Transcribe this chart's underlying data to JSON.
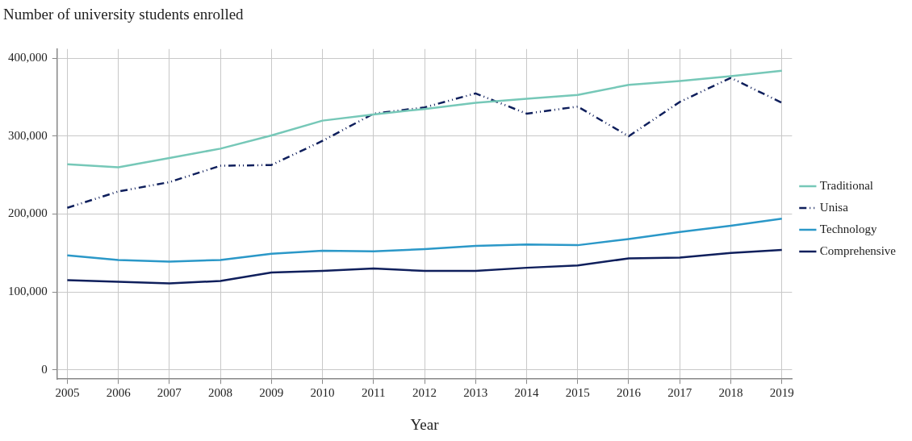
{
  "chart_data": {
    "type": "line",
    "title": "Number of university students enrolled",
    "xlabel": "Year",
    "x": [
      2005,
      2006,
      2007,
      2008,
      2009,
      2010,
      2011,
      2012,
      2013,
      2014,
      2015,
      2016,
      2017,
      2018,
      2019
    ],
    "xlim": [
      2004.8,
      2019.2
    ],
    "xticks": [
      2005,
      2006,
      2007,
      2008,
      2009,
      2010,
      2011,
      2012,
      2013,
      2014,
      2015,
      2016,
      2017,
      2018,
      2019
    ],
    "ylim": [
      -12000,
      412000
    ],
    "yticks": [
      {
        "value": 0,
        "label": "0"
      },
      {
        "value": 100000,
        "label": "100,000"
      },
      {
        "value": 200000,
        "label": "200,000"
      },
      {
        "value": 300000,
        "label": "300,000"
      },
      {
        "value": 400000,
        "label": "400,000"
      }
    ],
    "grid": true,
    "legend": "right",
    "marker": "none",
    "series": [
      {
        "name": "Traditional",
        "color": "#76c8b8",
        "line_style": "solid",
        "values": [
          264000,
          260000,
          272000,
          284000,
          301000,
          320000,
          328000,
          335000,
          343000,
          348000,
          353000,
          366000,
          371000,
          377000,
          384000
        ]
      },
      {
        "name": "Unisa",
        "color": "#0f1f5c",
        "line_style": "dashed",
        "values": [
          208000,
          229000,
          241000,
          262000,
          263000,
          294000,
          329000,
          337000,
          355000,
          329000,
          338000,
          300000,
          344000,
          375000,
          343000
        ]
      },
      {
        "name": "Technology",
        "color": "#2b98c8",
        "line_style": "solid",
        "values": [
          147000,
          141000,
          139000,
          141000,
          149000,
          153000,
          152000,
          155000,
          159000,
          161000,
          160000,
          168000,
          177000,
          185000,
          194000
        ]
      },
      {
        "name": "Comprehensive",
        "color": "#0f1f5c",
        "line_style": "solid",
        "values": [
          115000,
          113000,
          111000,
          114000,
          125000,
          127000,
          130000,
          127000,
          127000,
          131000,
          134000,
          143000,
          144000,
          150000,
          154000
        ]
      }
    ]
  }
}
